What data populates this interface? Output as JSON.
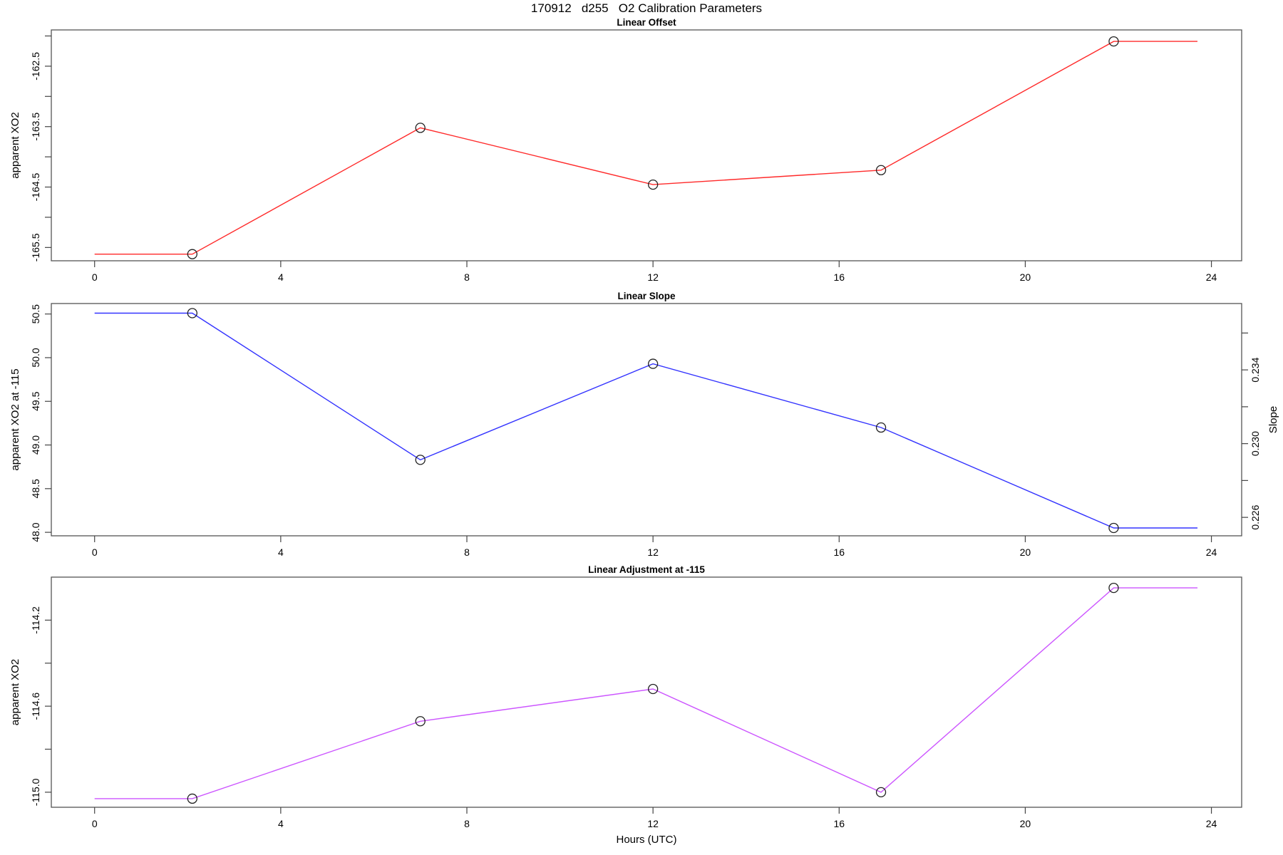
{
  "main_title": "170912   d255   O2 Calibration Parameters",
  "xlabel": "Hours (UTC)",
  "x_axis": {
    "lim": [
      -0.93,
      24.65
    ],
    "ticks": [
      0,
      4,
      8,
      12,
      16,
      20,
      24
    ],
    "tick_labels": [
      "0",
      "4",
      "8",
      "12",
      "16",
      "20",
      "24"
    ]
  },
  "chart_data": [
    {
      "type": "line",
      "title": "Linear Offset",
      "ylabel": "apparent XO2",
      "color": "#ff2a2a",
      "marker": "open-circle",
      "x": [
        2.1,
        7.0,
        12.0,
        16.9,
        21.9
      ],
      "y": [
        -165.61,
        -163.52,
        -164.46,
        -164.22,
        -162.09
      ],
      "line_extends_x": [
        0,
        23.7
      ],
      "ylim": [
        -165.72,
        -161.9
      ],
      "yticks": [
        -165.5,
        -165.0,
        -164.5,
        -164.0,
        -163.5,
        -163.0,
        -162.5,
        -162.0
      ],
      "ytick_labels": [
        "-165.5",
        "",
        "-164.5",
        "",
        "-163.5",
        "",
        "-162.5",
        ""
      ]
    },
    {
      "type": "line",
      "title": "Linear Slope",
      "ylabel": "apparent XO2 at -115",
      "y2label": "Slope",
      "color": "#3333ff",
      "marker": "open-circle",
      "x": [
        2.1,
        7.0,
        12.0,
        16.9,
        21.9
      ],
      "y": [
        50.51,
        48.83,
        49.93,
        49.2,
        48.05
      ],
      "y_right_slope": [
        0.237,
        0.2291,
        0.2342,
        0.2308,
        0.2255
      ],
      "line_extends_x": [
        0,
        23.7
      ],
      "ylim": [
        47.96,
        50.62
      ],
      "yticks": [
        48.0,
        48.5,
        49.0,
        49.5,
        50.0,
        50.5
      ],
      "ytick_labels": [
        "48.0",
        "48.5",
        "49.0",
        "49.5",
        "50.0",
        "50.5"
      ],
      "y2lim": [
        0.225,
        0.2376
      ],
      "y2ticks": [
        0.226,
        0.228,
        0.23,
        0.232,
        0.234,
        0.236
      ],
      "y2tick_labels": [
        "0.226",
        "",
        "0.230",
        "",
        "0.234",
        ""
      ]
    },
    {
      "type": "line",
      "title": "Linear Adjustment at -115",
      "ylabel": "apparent XO2",
      "color": "#cc55ff",
      "marker": "open-circle",
      "x": [
        2.1,
        7.0,
        12.0,
        16.9,
        21.9
      ],
      "y": [
        -115.03,
        -114.67,
        -114.52,
        -115.0,
        -114.05
      ],
      "line_extends_x": [
        0,
        23.7
      ],
      "ylim": [
        -115.07,
        -114.0
      ],
      "yticks": [
        -115.0,
        -114.8,
        -114.6,
        -114.4,
        -114.2
      ],
      "ytick_labels": [
        "-115.0",
        "",
        "-114.6",
        "",
        "-114.2"
      ]
    }
  ]
}
